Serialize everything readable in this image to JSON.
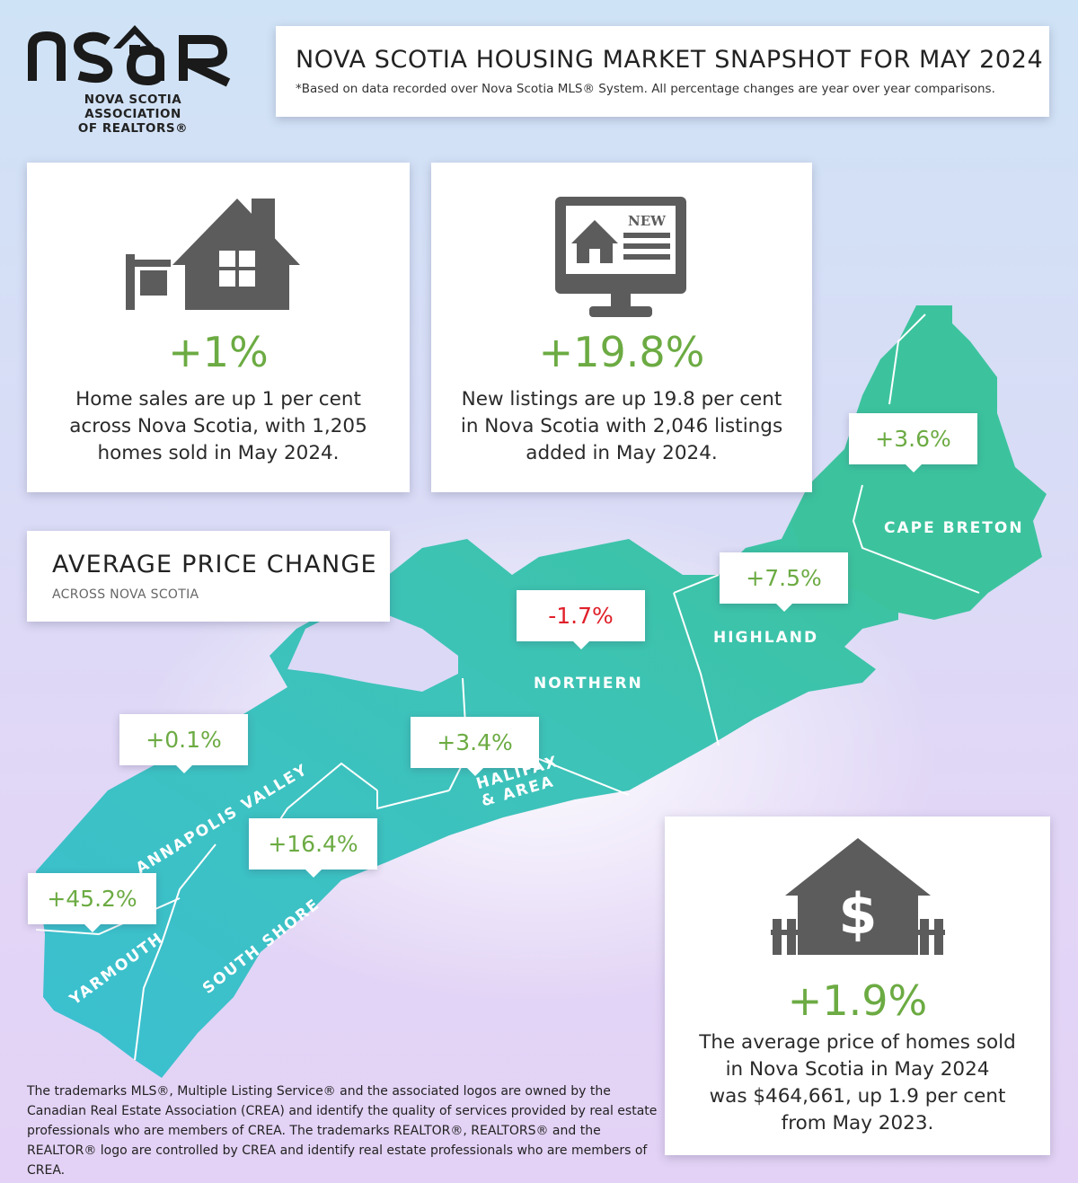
{
  "logo": {
    "wordmark": "nsAR",
    "name_line1": "NOVA SCOTIA ASSOCIATION",
    "name_line2_prefix": "OF ",
    "name_line2_bold": "REALTORS",
    "name_line2_suffix": "®"
  },
  "header": {
    "title": "NOVA SCOTIA HOUSING MARKET SNAPSHOT FOR MAY 2024",
    "subtitle": "*Based on data recorded over Nova Scotia MLS® System. All percentage changes are year over year comparisons."
  },
  "sales": {
    "icon": "house-for-sale-icon",
    "percent": "+1%",
    "line1": "Home sales are up 1 per cent",
    "line2": "across Nova Scotia, with 1,205",
    "line3": "homes sold in May 2024."
  },
  "listings": {
    "icon": "new-listing-monitor-icon",
    "badge": "NEW",
    "percent": "+19.8%",
    "line1": "New listings are up 19.8 per cent",
    "line2": "in Nova Scotia with 2,046 listings",
    "line3": "added in May 2024."
  },
  "average_price": {
    "title": "AVERAGE PRICE CHANGE",
    "subtitle": "ACROSS NOVA SCOTIA"
  },
  "regions": [
    {
      "name": "CAPE BRETON",
      "change": "+3.6%",
      "negative": false
    },
    {
      "name": "HIGHLAND",
      "change": "+7.5%",
      "negative": false
    },
    {
      "name": "NORTHERN",
      "change": "-1.7%",
      "negative": true
    },
    {
      "name": "HALIFAX",
      "name2": "& AREA",
      "change": "+3.4%",
      "negative": false
    },
    {
      "name": "ANNAPOLIS VALLEY",
      "change": "+0.1%",
      "negative": false
    },
    {
      "name": "SOUTH SHORE",
      "change": "+16.4%",
      "negative": false
    },
    {
      "name": "YARMOUTH",
      "change": "+45.2%",
      "negative": false
    }
  ],
  "price": {
    "icon": "house-dollar-icon",
    "percent": "+1.9%",
    "line1": "The average price of homes sold",
    "line2": "in Nova Scotia in May 2024",
    "line3": "was $464,661, up 1.9 per cent",
    "line4": "from May 2023."
  },
  "disclaimer": "The trademarks MLS®, Multiple Listing Service® and the associated logos are owned by the Canadian Real Estate Association (CREA) and identify the quality of services provided by real estate professionals who are members of CREA. The trademarks REALTOR®, REALTORS® and the REALTOR® logo are controlled by CREA and identify real estate professionals who are members of CREA.",
  "colors": {
    "positive": "#6cab43",
    "negative": "#e0202a",
    "map_fill": "#3fc1c4",
    "icon_gray": "#5c5c5c"
  }
}
